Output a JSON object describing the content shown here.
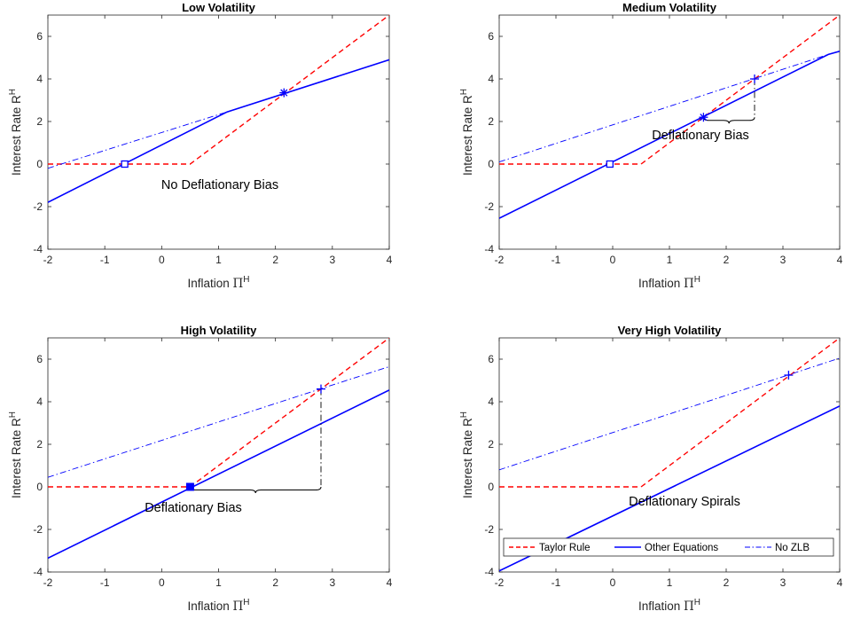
{
  "colors": {
    "taylor": "#ff0000",
    "other": "#0000ff",
    "nozlb": "#0000ff",
    "axes": "#262626",
    "markers": "#0000ff"
  },
  "labels": {
    "xlabel_text": "Inflation ",
    "xlabel_symbol": "Π",
    "xlabel_sup": "H",
    "ylabel_text": "Interest Rate R",
    "ylabel_sup": "H"
  },
  "legend": {
    "entries": [
      {
        "label": "Taylor Rule",
        "style": "dashed",
        "color": "#ff0000"
      },
      {
        "label": "Other Equations",
        "style": "solid",
        "color": "#0000ff"
      },
      {
        "label": "No ZLB",
        "style": "dashdot",
        "color": "#0000ff"
      }
    ],
    "placement": "bottom",
    "panel_index": 3
  },
  "chart_data": [
    {
      "type": "line",
      "title": "Low Volatility",
      "xlim": [
        -2,
        4
      ],
      "ylim": [
        -4,
        7
      ],
      "xticks": [
        -2,
        -1,
        0,
        1,
        2,
        3,
        4
      ],
      "yticks": [
        -4,
        -2,
        0,
        2,
        4,
        6
      ],
      "annotation": "No Deflationary Bias",
      "series": [
        {
          "key": "taylor",
          "style": "dashed",
          "x": [
            -2,
            0.5,
            4
          ],
          "y": [
            0,
            0,
            7
          ]
        },
        {
          "key": "other",
          "style": "solid",
          "x": [
            -2,
            1.15,
            4
          ],
          "y": [
            -1.8,
            2.45,
            4.9
          ]
        },
        {
          "key": "nozlb",
          "style": "dashdot",
          "x": [
            -2,
            1.15
          ],
          "y": [
            -0.2,
            2.45
          ]
        }
      ],
      "points": [
        {
          "x": -0.65,
          "y": 0,
          "marker": "square"
        },
        {
          "x": 2.15,
          "y": 3.35,
          "marker": "star"
        }
      ]
    },
    {
      "type": "line",
      "title": "Medium Volatility",
      "xlim": [
        -2,
        4
      ],
      "ylim": [
        -4,
        7
      ],
      "xticks": [
        -2,
        -1,
        0,
        1,
        2,
        3,
        4
      ],
      "yticks": [
        -4,
        -2,
        0,
        2,
        4,
        6
      ],
      "annotation": "Deflationary Bias",
      "series": [
        {
          "key": "taylor",
          "style": "dashed",
          "x": [
            -2,
            0.5,
            4
          ],
          "y": [
            0,
            0,
            7
          ]
        },
        {
          "key": "other",
          "style": "solid",
          "x": [
            -2,
            3.8,
            4
          ],
          "y": [
            -2.55,
            5.15,
            5.3
          ]
        },
        {
          "key": "nozlb",
          "style": "dashdot",
          "x": [
            -2,
            3.8
          ],
          "y": [
            0.1,
            5.15
          ]
        }
      ],
      "points": [
        {
          "x": -0.05,
          "y": 0,
          "marker": "square"
        },
        {
          "x": 1.6,
          "y": 2.2,
          "marker": "star"
        },
        {
          "x": 2.5,
          "y": 4.0,
          "marker": "plus"
        }
      ]
    },
    {
      "type": "line",
      "title": "High Volatility",
      "xlim": [
        -2,
        4
      ],
      "ylim": [
        -4,
        7
      ],
      "xticks": [
        -2,
        -1,
        0,
        1,
        2,
        3,
        4
      ],
      "yticks": [
        -4,
        -2,
        0,
        2,
        4,
        6
      ],
      "annotation": "Deflationary Bias",
      "series": [
        {
          "key": "taylor",
          "style": "dashed",
          "x": [
            -2,
            0.5,
            4
          ],
          "y": [
            0,
            0,
            7
          ]
        },
        {
          "key": "other",
          "style": "solid",
          "x": [
            -2,
            4
          ],
          "y": [
            -3.35,
            4.55
          ]
        },
        {
          "key": "nozlb",
          "style": "dashdot",
          "x": [
            -2,
            4
          ],
          "y": [
            0.45,
            5.65
          ]
        }
      ],
      "points": [
        {
          "x": 0.5,
          "y": 0,
          "marker": "filled-square"
        },
        {
          "x": 2.8,
          "y": 4.6,
          "marker": "plus"
        }
      ]
    },
    {
      "type": "line",
      "title": "Very High Volatility",
      "xlim": [
        -2,
        4
      ],
      "ylim": [
        -4,
        7
      ],
      "xticks": [
        -2,
        -1,
        0,
        1,
        2,
        3,
        4
      ],
      "yticks": [
        -4,
        -2,
        0,
        2,
        4,
        6
      ],
      "annotation": "Deflationary Spirals",
      "series": [
        {
          "key": "taylor",
          "style": "dashed",
          "x": [
            -2,
            0.5,
            4
          ],
          "y": [
            0,
            0,
            7
          ]
        },
        {
          "key": "other",
          "style": "solid",
          "x": [
            -2,
            4
          ],
          "y": [
            -3.95,
            3.8
          ]
        },
        {
          "key": "nozlb",
          "style": "dashdot",
          "x": [
            -2,
            4
          ],
          "y": [
            0.8,
            6.05
          ]
        }
      ],
      "points": [
        {
          "x": 3.1,
          "y": 5.25,
          "marker": "plus"
        }
      ]
    }
  ]
}
